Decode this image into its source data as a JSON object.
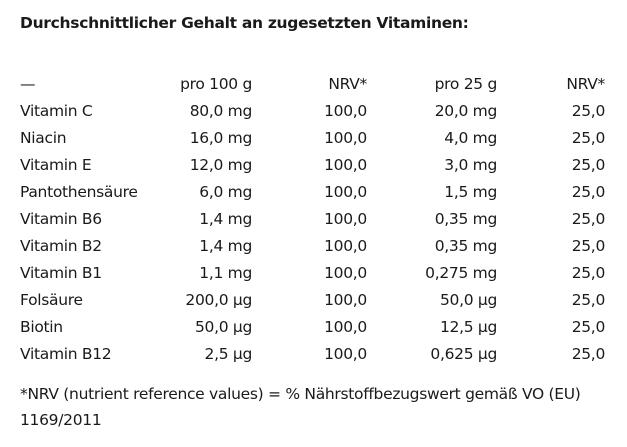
{
  "heading": "Durchschnittlicher Gehalt an zugesetzten Vitaminen:",
  "table": {
    "headers": [
      "—",
      "pro 100 g",
      "NRV*",
      "pro 25 g",
      "NRV*"
    ],
    "rows": [
      [
        "Vitamin C",
        "80,0 mg",
        "100,0",
        "20,0 mg",
        "25,0"
      ],
      [
        "Niacin",
        "16,0 mg",
        "100,0",
        "4,0 mg",
        "25,0"
      ],
      [
        "Vitamin E",
        "12,0 mg",
        "100,0",
        "3,0 mg",
        "25,0"
      ],
      [
        "Pantothensäure",
        "6,0 mg",
        "100,0",
        "1,5 mg",
        "25,0"
      ],
      [
        "Vitamin B6",
        "1,4 mg",
        "100,0",
        "0,35 mg",
        "25,0"
      ],
      [
        "Vitamin B2",
        "1,4 mg",
        "100,0",
        "0,35 mg",
        "25,0"
      ],
      [
        "Vitamin B1",
        "1,1 mg",
        "100,0",
        "0,275 mg",
        "25,0"
      ],
      [
        "Folsäure",
        "200,0 µg",
        "100,0",
        "50,0 µg",
        "25,0"
      ],
      [
        "Biotin",
        "50,0 µg",
        "100,0",
        "12,5 µg",
        "25,0"
      ],
      [
        "Vitamin B12",
        "2,5 µg",
        "100,0",
        "0,625 µg",
        "25,0"
      ]
    ]
  },
  "footnote": "*NRV (nutrient reference values) = % Nährstoffbezugswert gemäß VO (EU) 1169/2011"
}
